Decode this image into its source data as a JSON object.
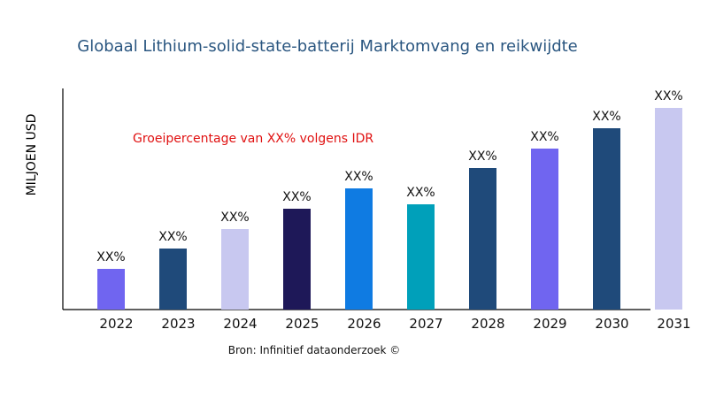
{
  "chart_data": {
    "type": "bar",
    "title": "Globaal Lithium-solid-state-batterij Marktomvang en reikwijdte",
    "ylabel": "MILJOEN USD",
    "xlabel": "",
    "annotation": "Groeipercentage van XX% volgens IDR",
    "source": "Bron: Infinitief dataonderzoek ©",
    "categories": [
      "2022",
      "2023",
      "2024",
      "2025",
      "2026",
      "2027",
      "2028",
      "2029",
      "2030",
      "2031"
    ],
    "values": [
      46,
      69,
      91,
      114,
      137,
      119,
      160,
      182,
      205,
      228
    ],
    "data_labels": [
      "XX%",
      "XX%",
      "XX%",
      "XX%",
      "XX%",
      "XX%",
      "XX%",
      "XX%",
      "XX%",
      "XX%"
    ],
    "colors": [
      "#7065f0",
      "#1f4a7a",
      "#c8c8f0",
      "#1e1858",
      "#0f7be2",
      "#00a0ba",
      "#1f4a7a",
      "#7065f0",
      "#1f4a7a",
      "#c8c8f0"
    ],
    "title_color": "#2a5680",
    "annotation_color": "#e01010",
    "grid": false,
    "ylim": [
      0,
      230
    ]
  }
}
